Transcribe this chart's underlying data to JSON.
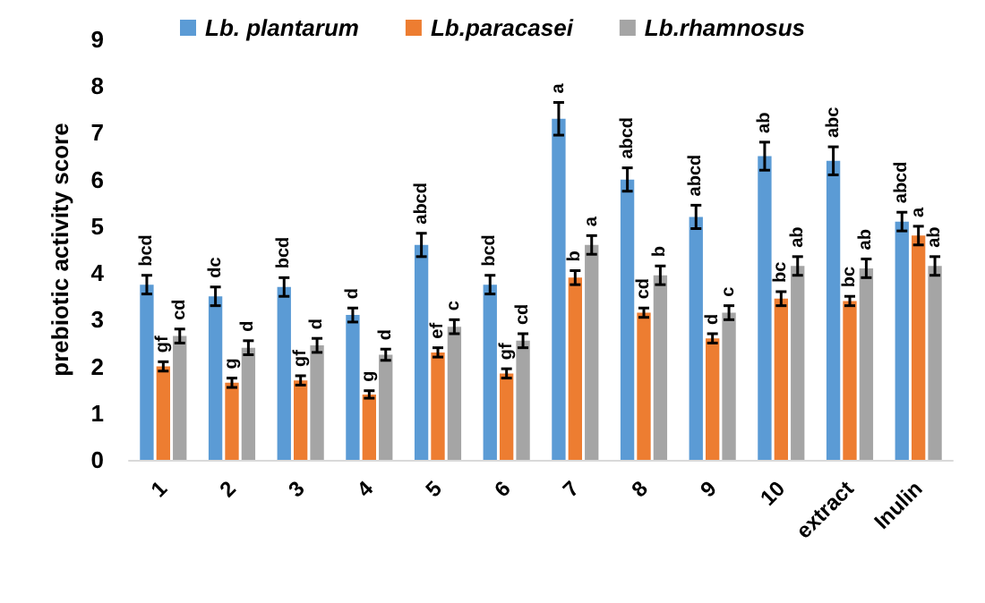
{
  "chart_data": {
    "type": "bar",
    "ylabel": "prebiotic activity score",
    "categories": [
      "1",
      "2",
      "3",
      "4",
      "5",
      "6",
      "7",
      "8",
      "9",
      "10",
      "extract",
      "Inulin"
    ],
    "series": [
      {
        "name": "Lb. plantarum",
        "color": "#5b9bd5",
        "values": [
          3.75,
          3.5,
          3.7,
          3.1,
          4.6,
          3.75,
          7.3,
          6.0,
          5.2,
          6.5,
          6.4,
          5.1
        ],
        "errors": [
          0.2,
          0.2,
          0.2,
          0.15,
          0.25,
          0.2,
          0.35,
          0.25,
          0.25,
          0.3,
          0.3,
          0.2
        ],
        "value_labels": [
          "bcd",
          "dc",
          "bcd",
          "d",
          "abcd",
          "bcd",
          "a",
          "abcd",
          "abcd",
          "ab",
          "abc",
          "abcd"
        ]
      },
      {
        "name": "Lb.paracasei",
        "color": "#ed7d31",
        "values": [
          2.0,
          1.65,
          1.7,
          1.4,
          2.3,
          1.85,
          3.9,
          3.15,
          2.6,
          3.45,
          3.4,
          4.8
        ],
        "errors": [
          0.1,
          0.1,
          0.1,
          0.08,
          0.1,
          0.1,
          0.15,
          0.1,
          0.1,
          0.15,
          0.1,
          0.2
        ],
        "value_labels": [
          "gf",
          "g",
          "gf",
          "g",
          "ef",
          "gf",
          "b",
          "cd",
          "d",
          "bc",
          "bc",
          "a"
        ]
      },
      {
        "name": "Lb.rhamnosus",
        "color": "#a5a5a5",
        "values": [
          2.65,
          2.4,
          2.45,
          2.25,
          2.85,
          2.55,
          4.6,
          3.95,
          3.15,
          4.15,
          4.1,
          4.15
        ],
        "errors": [
          0.15,
          0.15,
          0.15,
          0.12,
          0.15,
          0.15,
          0.2,
          0.2,
          0.15,
          0.2,
          0.2,
          0.2
        ],
        "value_labels": [
          "cd",
          "d",
          "d",
          "d",
          "c",
          "cd",
          "a",
          "b",
          "c",
          "ab",
          "ab",
          "ab"
        ]
      }
    ],
    "ylim": [
      0,
      9
    ],
    "yticks": [
      0,
      1,
      2,
      3,
      4,
      5,
      6,
      7,
      8,
      9
    ],
    "grid": false,
    "legend": "top"
  }
}
